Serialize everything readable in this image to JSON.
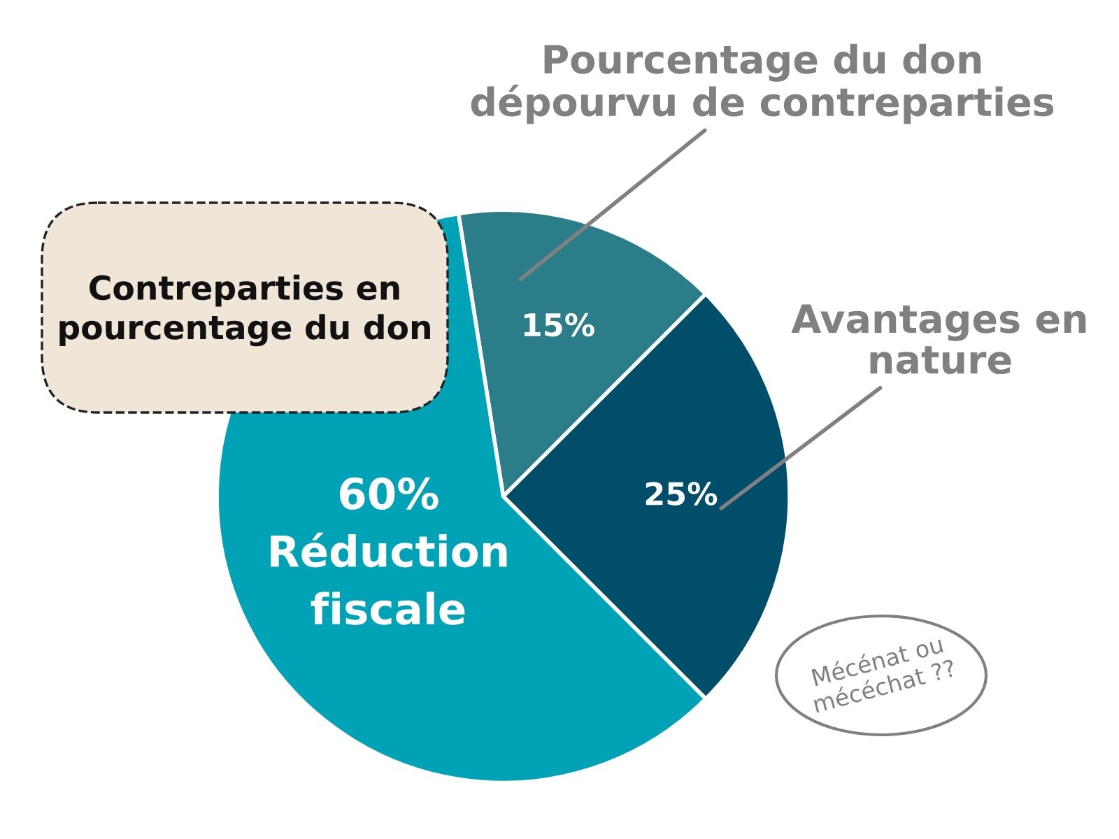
{
  "chart_data": {
    "type": "pie",
    "title": "Contreparties en pourcentage du don",
    "categories": [
      "Pourcentage du don dépourvu de contreparties",
      "Avantages en nature",
      "Réduction fiscale"
    ],
    "values": [
      15,
      25,
      60
    ],
    "colors": [
      "#2a7d89",
      "#004e69",
      "#00a2b6"
    ],
    "value_labels": [
      "15%",
      "25%",
      "60%"
    ],
    "annotations": [
      "Mécénat ou mécéchat ??"
    ]
  }
}
